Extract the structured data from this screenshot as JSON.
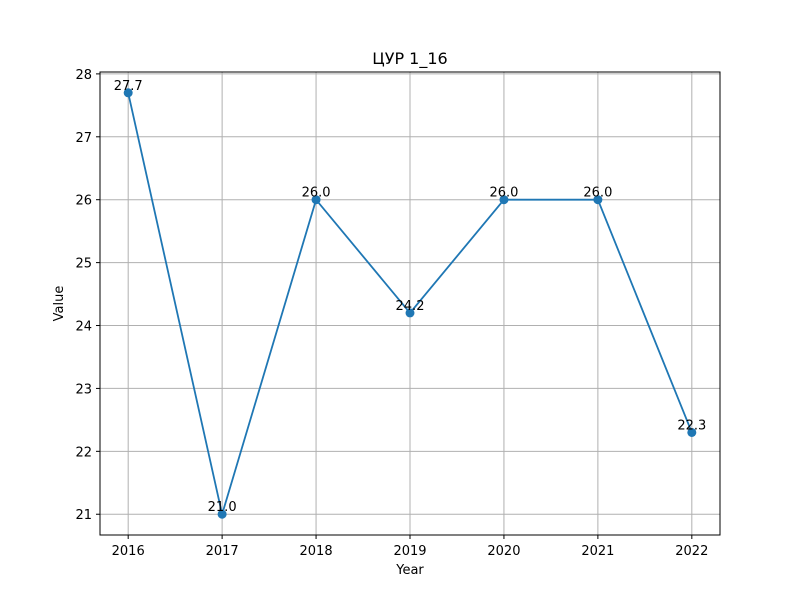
{
  "chart_data": {
    "type": "line",
    "title": "ЦУР 1_16",
    "xlabel": "Year",
    "ylabel": "Value",
    "x": [
      2016,
      2017,
      2018,
      2019,
      2020,
      2021,
      2022
    ],
    "series": [
      {
        "values": [
          27.7,
          21.0,
          26.0,
          24.2,
          26.0,
          26.0,
          22.3
        ],
        "color": "#1f77b4"
      }
    ],
    "data_labels": [
      "27.7",
      "21.0",
      "26.0",
      "24.2",
      "26.0",
      "26.0",
      "22.3"
    ],
    "x_ticks": [
      2016,
      2017,
      2018,
      2019,
      2020,
      2021,
      2022
    ],
    "y_ticks": [
      21,
      22,
      23,
      24,
      25,
      26,
      27,
      28
    ],
    "xlim": [
      2015.7,
      2022.3
    ],
    "ylim": [
      20.67,
      28.03
    ],
    "grid": true,
    "markers": "circle"
  }
}
